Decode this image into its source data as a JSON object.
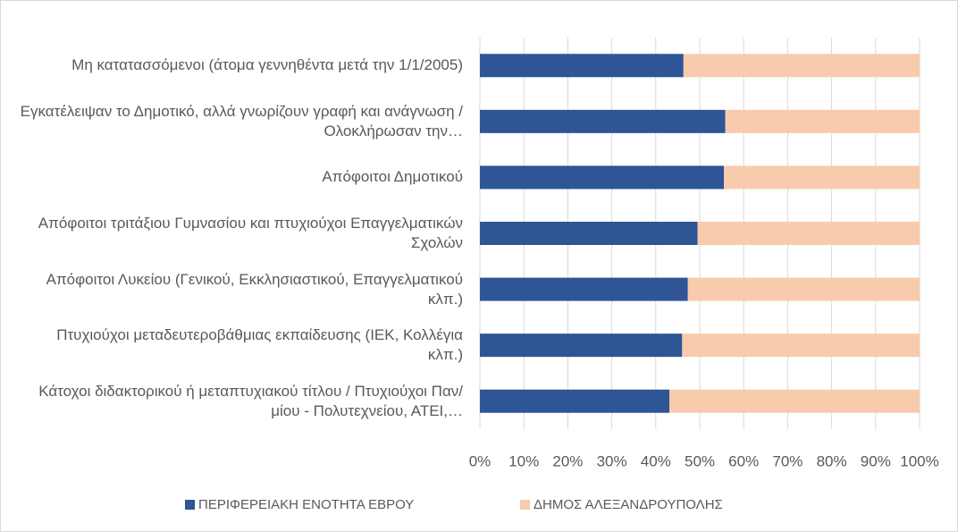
{
  "chart_data": {
    "type": "stacked_bar_100",
    "categories": [
      "Μη κατατασσόμενοι (άτομα γεννηθέντα μετά την 1/1/2005)",
      "Εγκατέλειψαν το Δημοτικό, αλλά γνωρίζουν γραφή και ανάγνωση / Ολοκλήρωσαν την…",
      "Απόφοιτοι Δημοτικού",
      "Απόφοιτοι τριτάξιου Γυμνασίου και πτυχιούχοι Επαγγελματικών Σχολών",
      "Απόφοιτοι Λυκείου (Γενικού, Εκκλησιαστικού, Επαγγελματικού κλπ.)",
      "Πτυχιούχοι μεταδευτεροβάθμιας εκπαίδευσης (ΙΕΚ, Κολλέγια κλπ.)",
      "Κάτοχοι διδακτορικού ή μεταπτυχιακού τίτλου / Πτυχιούχοι Παν/μίου - Πολυτεχνείου, ΑΤΕΙ,…"
    ],
    "series": [
      {
        "name": "ΠΕΡΙΦΕΡΕΙΑΚΗ ΕΝΟΤΗΤΑ ΕΒΡΟΥ",
        "color": "#2f5597",
        "values": [
          46.3,
          55.8,
          55.5,
          49.5,
          47.3,
          46,
          43.1
        ]
      },
      {
        "name": "ΔΗΜΟΣ ΑΛΕΞΑΝΔΡΟΥΠΟΛΗΣ",
        "color": "#f8cbad",
        "values": [
          53.7,
          44.2,
          44.5,
          50.5,
          52.7,
          54,
          56.9
        ]
      }
    ],
    "xlim": [
      0,
      100
    ],
    "xticks": [
      {
        "value": 0,
        "label": "0%"
      },
      {
        "value": 10,
        "label": "10%"
      },
      {
        "value": 20,
        "label": "20%"
      },
      {
        "value": 30,
        "label": "30%"
      },
      {
        "value": 40,
        "label": "40%"
      },
      {
        "value": 50,
        "label": "50%"
      },
      {
        "value": 60,
        "label": "60%"
      },
      {
        "value": 70,
        "label": "70%"
      },
      {
        "value": 80,
        "label": "80%"
      },
      {
        "value": 90,
        "label": "90%"
      },
      {
        "value": 100,
        "label": "100%"
      }
    ],
    "grid": true,
    "legend": "bottom"
  }
}
